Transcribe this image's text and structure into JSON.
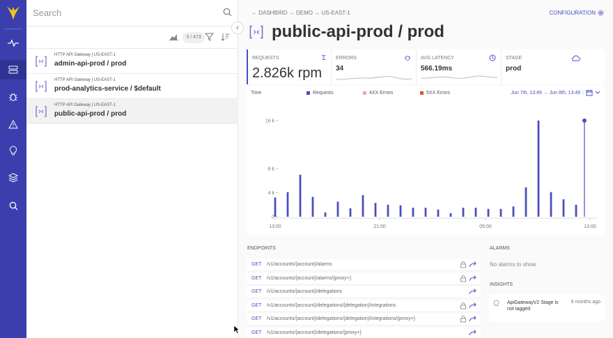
{
  "search": {
    "placeholder": "Search"
  },
  "toolbar": {
    "count": "3 / 473"
  },
  "list": [
    {
      "subtitle": "HTTP API Gateway | US-EAST-1",
      "name": "admin-api-prod / prod",
      "selected": false
    },
    {
      "subtitle": "HTTP API Gateway | US-EAST-1",
      "name": "prod-analytics-service / $default",
      "selected": false
    },
    {
      "subtitle": "HTTP API Gateway | US-EAST-1",
      "name": "public-api-prod / prod",
      "selected": true
    }
  ],
  "breadcrumb": {
    "text": "DASHBIRD → DEMO → US-EAST-1"
  },
  "header": {
    "title": "public-api-prod / prod",
    "config_label": "CONFIGURATION"
  },
  "metrics": {
    "requests": {
      "label": "REQUESTS",
      "value": "2.826k rpm"
    },
    "errors": {
      "label": "ERRORS",
      "value": "34"
    },
    "latency": {
      "label": "AVG LATENCY",
      "value": "566.19ms"
    },
    "stage": {
      "label": "STAGE",
      "value": "prod"
    }
  },
  "chart_header": {
    "time_label": "Time",
    "range": "Jun 7th, 13:49 → Jun 8th, 13:49"
  },
  "colors": {
    "accent": "#4a4fbf",
    "requests": "#4a4fbf",
    "err4xx": "#f3a6b3",
    "err5xx": "#e0502f",
    "rail": "#3b3fae"
  },
  "chart_data": {
    "type": "bar",
    "series": [
      {
        "name": "Requests",
        "values": [
          3200,
          4100,
          7000,
          3300,
          700,
          2500,
          1400,
          3600,
          2300,
          2000,
          1900,
          1500,
          1500,
          1200,
          600,
          1500,
          1500,
          1300,
          1300,
          1700,
          4900,
          16000,
          4100,
          2900,
          2000,
          16000
        ]
      },
      {
        "name": "4XX Errors",
        "values": []
      },
      {
        "name": "5XX Errors",
        "values": []
      }
    ],
    "yticks": [
      "0",
      "4 k",
      "8 k",
      "16 k"
    ],
    "ytick_values": [
      0,
      4000,
      8000,
      16000
    ],
    "xticks": [
      "13:00",
      "21:00",
      "05:00",
      "13:00"
    ],
    "ylim": [
      0,
      16000
    ],
    "legend_placement": "top"
  },
  "endpoints_title": "ENDPOINTS",
  "endpoints": [
    {
      "method": "GET",
      "path": "/v1/accounts/{account}/alarms",
      "locked": true
    },
    {
      "method": "GET",
      "path": "/v1/accounts/{account}/alarms/{proxy+}",
      "locked": true
    },
    {
      "method": "GET",
      "path": "/v1/accounts/{account}/delegations",
      "locked": false
    },
    {
      "method": "GET",
      "path": "/v1/accounts/{account}/delegations/{delegation}/integrations",
      "locked": true
    },
    {
      "method": "GET",
      "path": "/v1/accounts/{account}/delegations/{delegation}/integrations/{proxy+}",
      "locked": true
    },
    {
      "method": "GET",
      "path": "/v1/accounts/{account}/delegations/{proxy+}",
      "locked": false
    }
  ],
  "alarms": {
    "title": "ALARMS",
    "empty": "No alarms to show"
  },
  "insights": {
    "title": "INSIGHTS",
    "text": "ApiGatewayV2 Stage is not tagged",
    "ago": "6 months ago"
  }
}
